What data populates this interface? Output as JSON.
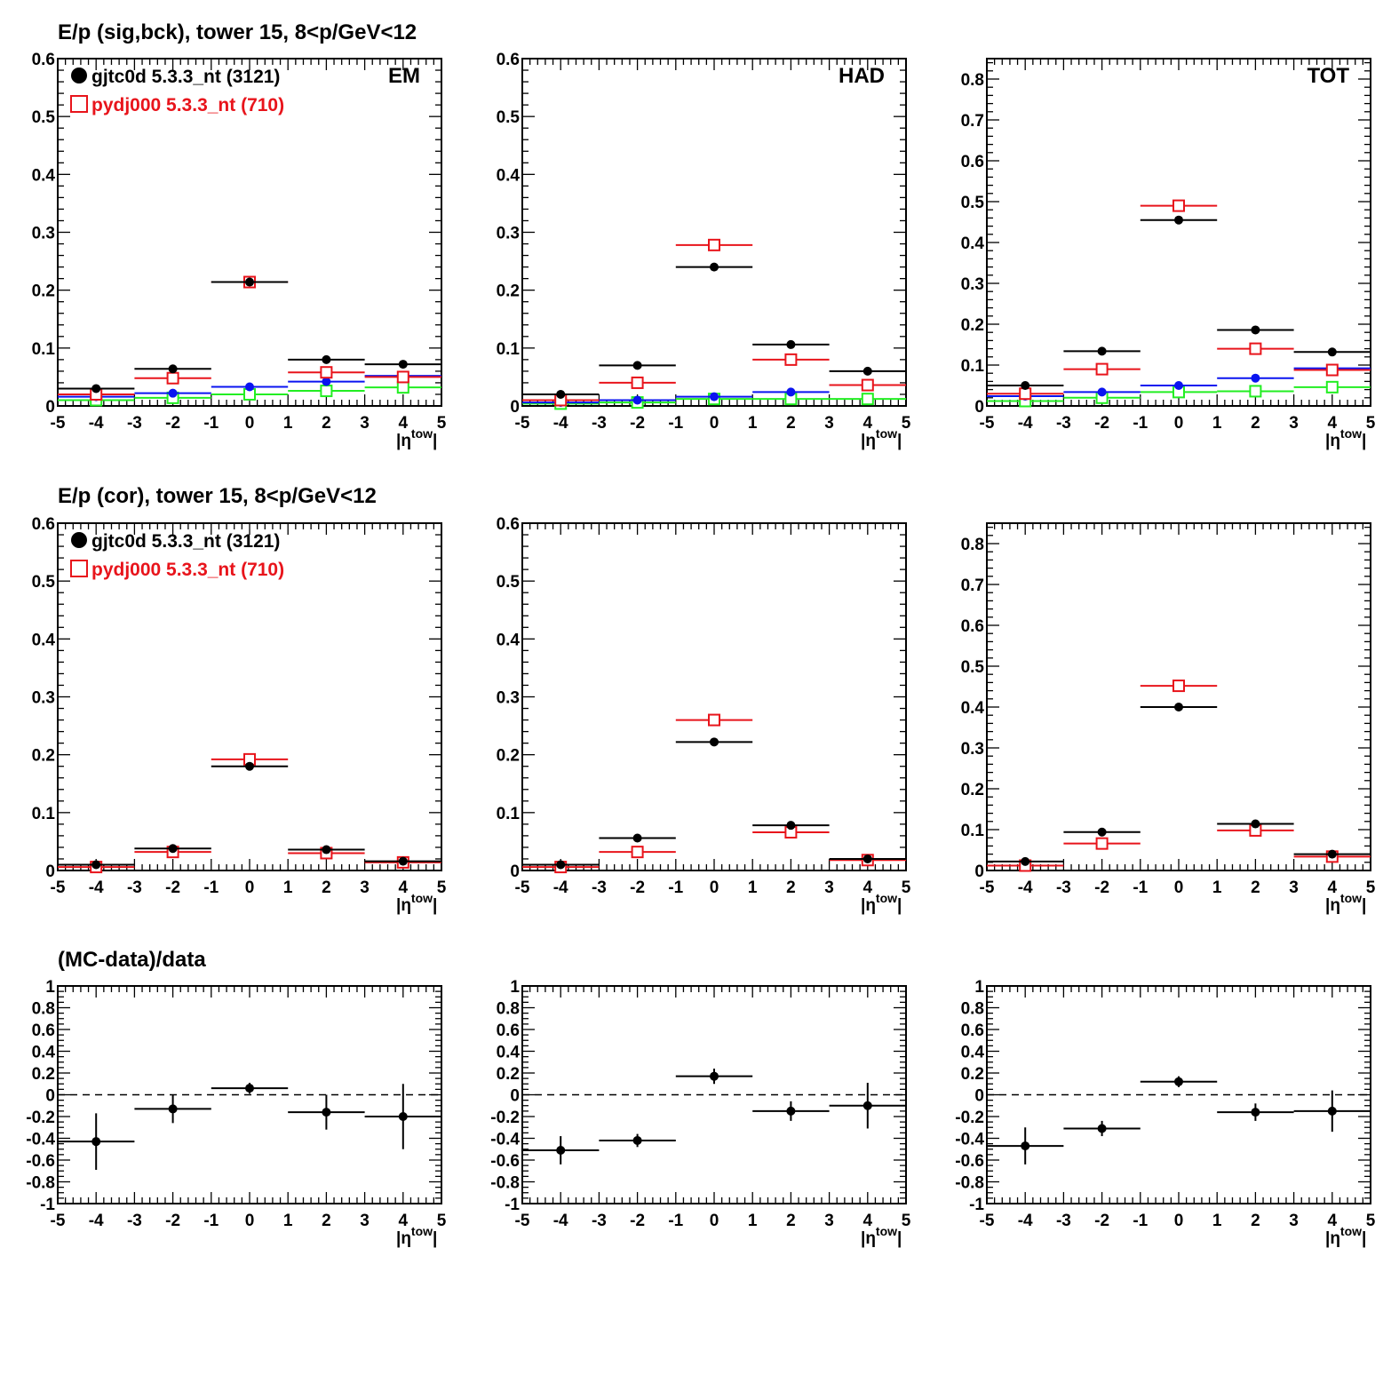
{
  "row_titles": [
    "E/p (sig,bck), tower 15,  8<p/GeV<12",
    "E/p (cor), tower 15,  8<p/GeV<12",
    "(MC-data)/data"
  ],
  "legend": [
    {
      "marker": "filled-circle",
      "color": "#000000",
      "label": "gjtc0d 5.3.3_nt (3121)"
    },
    {
      "marker": "open-square",
      "color": "#e8141b",
      "label": "pydj000 5.3.3_nt (710)"
    }
  ],
  "colors": {
    "data": "#000000",
    "mc": "#e8141b",
    "blue": "#0a14f0",
    "green": "#22ee22",
    "frame": "#000000",
    "reference_line": "#000000"
  },
  "chart_data": [
    {
      "id": "sigbck-em",
      "type": "scatter",
      "corner_label": "EM",
      "xlabel": "|η^tow|",
      "xlim": [
        -5,
        5
      ],
      "ylim": [
        0,
        0.6
      ],
      "yticks": [
        0,
        0.1,
        0.2,
        0.3,
        0.4,
        0.5,
        0.6
      ],
      "tick_labels": [
        "0",
        "0.1",
        "0.2",
        "0.3",
        "0.4",
        "0.5",
        "0.6"
      ],
      "legend_shown": true,
      "x": [
        -4,
        -2,
        0,
        2,
        4
      ],
      "xerr": 1,
      "series": [
        {
          "color": "black",
          "marker": "filled-circle",
          "values": [
            0.03,
            0.064,
            0.214,
            0.08,
            0.072
          ],
          "errors": [
            0.002,
            0.002,
            0.002,
            0.002,
            0.002
          ]
        },
        {
          "color": "red",
          "marker": "open-square",
          "values": [
            0.02,
            0.048,
            0.214,
            0.058,
            0.05
          ],
          "errors": [
            0.004,
            0.005,
            0.006,
            0.005,
            0.005
          ]
        },
        {
          "color": "blue",
          "marker": "filled-circle",
          "values": [
            0.016,
            0.022,
            0.033,
            0.042,
            0.052
          ],
          "errors": [
            0,
            0,
            0,
            0,
            0
          ]
        },
        {
          "color": "green",
          "marker": "open-square",
          "values": [
            0.01,
            0.014,
            0.02,
            0.026,
            0.032
          ],
          "errors": [
            0,
            0,
            0,
            0,
            0
          ]
        }
      ]
    },
    {
      "id": "sigbck-had",
      "type": "scatter",
      "corner_label": "HAD",
      "xlabel": "|η^tow|",
      "xlim": [
        -5,
        5
      ],
      "ylim": [
        0,
        0.6
      ],
      "yticks": [
        0,
        0.1,
        0.2,
        0.3,
        0.4,
        0.5,
        0.6
      ],
      "tick_labels": [
        "0",
        "0.1",
        "0.2",
        "0.3",
        "0.4",
        "0.5",
        "0.6"
      ],
      "legend_shown": false,
      "x": [
        -4,
        -2,
        0,
        2,
        4
      ],
      "xerr": 1,
      "series": [
        {
          "color": "black",
          "marker": "filled-circle",
          "values": [
            0.02,
            0.07,
            0.24,
            0.106,
            0.06
          ],
          "errors": [
            0.002,
            0.002,
            0.002,
            0.002,
            0.002
          ]
        },
        {
          "color": "red",
          "marker": "open-square",
          "values": [
            0.01,
            0.04,
            0.278,
            0.08,
            0.036
          ],
          "errors": [
            0.004,
            0.005,
            0.008,
            0.006,
            0.005
          ]
        },
        {
          "color": "blue",
          "marker": "filled-circle",
          "values": [
            0.006,
            0.01,
            0.016,
            0.024,
            0.036
          ],
          "errors": [
            0,
            0,
            0,
            0,
            0
          ]
        },
        {
          "color": "green",
          "marker": "open-square",
          "values": [
            0.004,
            0.006,
            0.012,
            0.012,
            0.012
          ],
          "errors": [
            0,
            0,
            0,
            0,
            0
          ]
        }
      ]
    },
    {
      "id": "sigbck-tot",
      "type": "scatter",
      "corner_label": "TOT",
      "xlabel": "|η^tow|",
      "xlim": [
        -5,
        5
      ],
      "ylim": [
        0,
        0.85
      ],
      "yticks": [
        0,
        0.1,
        0.2,
        0.3,
        0.4,
        0.5,
        0.6,
        0.7,
        0.8
      ],
      "tick_labels": [
        "0",
        "0.1",
        "0.2",
        "0.3",
        "0.4",
        "0.5",
        "0.6",
        "0.7",
        "0.8"
      ],
      "legend_shown": false,
      "x": [
        -4,
        -2,
        0,
        2,
        4
      ],
      "xerr": 1,
      "series": [
        {
          "color": "black",
          "marker": "filled-circle",
          "values": [
            0.05,
            0.134,
            0.455,
            0.186,
            0.132
          ],
          "errors": [
            0.002,
            0.002,
            0.002,
            0.002,
            0.002
          ]
        },
        {
          "color": "red",
          "marker": "open-square",
          "values": [
            0.03,
            0.09,
            0.49,
            0.14,
            0.088
          ],
          "errors": [
            0.005,
            0.006,
            0.009,
            0.007,
            0.006
          ]
        },
        {
          "color": "blue",
          "marker": "filled-circle",
          "values": [
            0.024,
            0.034,
            0.05,
            0.068,
            0.092
          ],
          "errors": [
            0,
            0,
            0,
            0,
            0
          ]
        },
        {
          "color": "green",
          "marker": "open-square",
          "values": [
            0.012,
            0.02,
            0.034,
            0.036,
            0.046
          ],
          "errors": [
            0,
            0,
            0,
            0,
            0
          ]
        }
      ]
    },
    {
      "id": "cor-em",
      "type": "scatter",
      "corner_label": "",
      "xlabel": "|η^tow|",
      "xlim": [
        -5,
        5
      ],
      "ylim": [
        0,
        0.6
      ],
      "yticks": [
        0,
        0.1,
        0.2,
        0.3,
        0.4,
        0.5,
        0.6
      ],
      "tick_labels": [
        "0",
        "0.1",
        "0.2",
        "0.3",
        "0.4",
        "0.5",
        "0.6"
      ],
      "legend_shown": true,
      "x": [
        -4,
        -2,
        0,
        2,
        4
      ],
      "xerr": 1,
      "series": [
        {
          "color": "black",
          "marker": "filled-circle",
          "values": [
            0.01,
            0.038,
            0.18,
            0.036,
            0.016
          ],
          "errors": [
            0.002,
            0.002,
            0.002,
            0.002,
            0.002
          ]
        },
        {
          "color": "red",
          "marker": "open-square",
          "values": [
            0.006,
            0.032,
            0.192,
            0.03,
            0.014
          ],
          "errors": [
            0.003,
            0.004,
            0.006,
            0.004,
            0.003
          ]
        }
      ]
    },
    {
      "id": "cor-had",
      "type": "scatter",
      "corner_label": "",
      "xlabel": "|η^tow|",
      "xlim": [
        -5,
        5
      ],
      "ylim": [
        0,
        0.6
      ],
      "yticks": [
        0,
        0.1,
        0.2,
        0.3,
        0.4,
        0.5,
        0.6
      ],
      "tick_labels": [
        "0",
        "0.1",
        "0.2",
        "0.3",
        "0.4",
        "0.5",
        "0.6"
      ],
      "legend_shown": false,
      "x": [
        -4,
        -2,
        0,
        2,
        4
      ],
      "xerr": 1,
      "series": [
        {
          "color": "black",
          "marker": "filled-circle",
          "values": [
            0.01,
            0.056,
            0.222,
            0.078,
            0.02
          ],
          "errors": [
            0.002,
            0.002,
            0.002,
            0.002,
            0.002
          ]
        },
        {
          "color": "red",
          "marker": "open-square",
          "values": [
            0.006,
            0.032,
            0.26,
            0.066,
            0.018
          ],
          "errors": [
            0.003,
            0.005,
            0.01,
            0.006,
            0.004
          ]
        }
      ]
    },
    {
      "id": "cor-tot",
      "type": "scatter",
      "corner_label": "",
      "xlabel": "|η^tow|",
      "xlim": [
        -5,
        5
      ],
      "ylim": [
        0,
        0.85
      ],
      "yticks": [
        0,
        0.1,
        0.2,
        0.3,
        0.4,
        0.5,
        0.6,
        0.7,
        0.8
      ],
      "tick_labels": [
        "0",
        "0.1",
        "0.2",
        "0.3",
        "0.4",
        "0.5",
        "0.6",
        "0.7",
        "0.8"
      ],
      "legend_shown": false,
      "x": [
        -4,
        -2,
        0,
        2,
        4
      ],
      "xerr": 1,
      "series": [
        {
          "color": "black",
          "marker": "filled-circle",
          "values": [
            0.022,
            0.094,
            0.4,
            0.114,
            0.04
          ],
          "errors": [
            0.002,
            0.002,
            0.002,
            0.002,
            0.002
          ]
        },
        {
          "color": "red",
          "marker": "open-square",
          "values": [
            0.012,
            0.066,
            0.452,
            0.098,
            0.034
          ],
          "errors": [
            0.004,
            0.006,
            0.012,
            0.007,
            0.005
          ]
        }
      ]
    },
    {
      "id": "ratio-em",
      "type": "scatter",
      "corner_label": "",
      "xlabel": "|η^tow|",
      "xlim": [
        -5,
        5
      ],
      "ylim": [
        -1,
        1
      ],
      "yticks": [
        -1,
        -0.8,
        -0.6,
        -0.4,
        -0.2,
        0,
        0.2,
        0.4,
        0.6,
        0.8,
        1
      ],
      "tick_labels": [
        "-1",
        "-0.8",
        "-0.6",
        "-0.4",
        "-0.2",
        "0",
        "0.2",
        "0.4",
        "0.6",
        "0.8",
        "1"
      ],
      "legend_shown": false,
      "reference_line": 0,
      "x": [
        -4,
        -2,
        0,
        2,
        4
      ],
      "xerr": 1,
      "series": [
        {
          "color": "black",
          "marker": "filled-circle",
          "values": [
            -0.43,
            -0.13,
            0.06,
            -0.16,
            -0.2
          ],
          "errors": [
            0.26,
            0.13,
            0.05,
            0.16,
            0.3
          ]
        }
      ]
    },
    {
      "id": "ratio-had",
      "type": "scatter",
      "corner_label": "",
      "xlabel": "|η^tow|",
      "xlim": [
        -5,
        5
      ],
      "ylim": [
        -1,
        1
      ],
      "yticks": [
        -1,
        -0.8,
        -0.6,
        -0.4,
        -0.2,
        0,
        0.2,
        0.4,
        0.6,
        0.8,
        1
      ],
      "tick_labels": [
        "-1",
        "-0.8",
        "-0.6",
        "-0.4",
        "-0.2",
        "0",
        "0.2",
        "0.4",
        "0.6",
        "0.8",
        "1"
      ],
      "legend_shown": false,
      "reference_line": 0,
      "x": [
        -4,
        -2,
        0,
        2,
        4
      ],
      "xerr": 1,
      "series": [
        {
          "color": "black",
          "marker": "filled-circle",
          "values": [
            -0.51,
            -0.42,
            0.17,
            -0.15,
            -0.1
          ],
          "errors": [
            0.13,
            0.06,
            0.07,
            0.09,
            0.21
          ]
        }
      ]
    },
    {
      "id": "ratio-tot",
      "type": "scatter",
      "corner_label": "",
      "xlabel": "|η^tow|",
      "xlim": [
        -5,
        5
      ],
      "ylim": [
        -1,
        1
      ],
      "yticks": [
        -1,
        -0.8,
        -0.6,
        -0.4,
        -0.2,
        0,
        0.2,
        0.4,
        0.6,
        0.8,
        1
      ],
      "tick_labels": [
        "-1",
        "-0.8",
        "-0.6",
        "-0.4",
        "-0.2",
        "0",
        "0.2",
        "0.4",
        "0.6",
        "0.8",
        "1"
      ],
      "legend_shown": false,
      "reference_line": 0,
      "x": [
        -4,
        -2,
        0,
        2,
        4
      ],
      "xerr": 1,
      "series": [
        {
          "color": "black",
          "marker": "filled-circle",
          "values": [
            -0.47,
            -0.31,
            0.12,
            -0.16,
            -0.15
          ],
          "errors": [
            0.17,
            0.07,
            0.05,
            0.08,
            0.19
          ]
        }
      ]
    }
  ]
}
